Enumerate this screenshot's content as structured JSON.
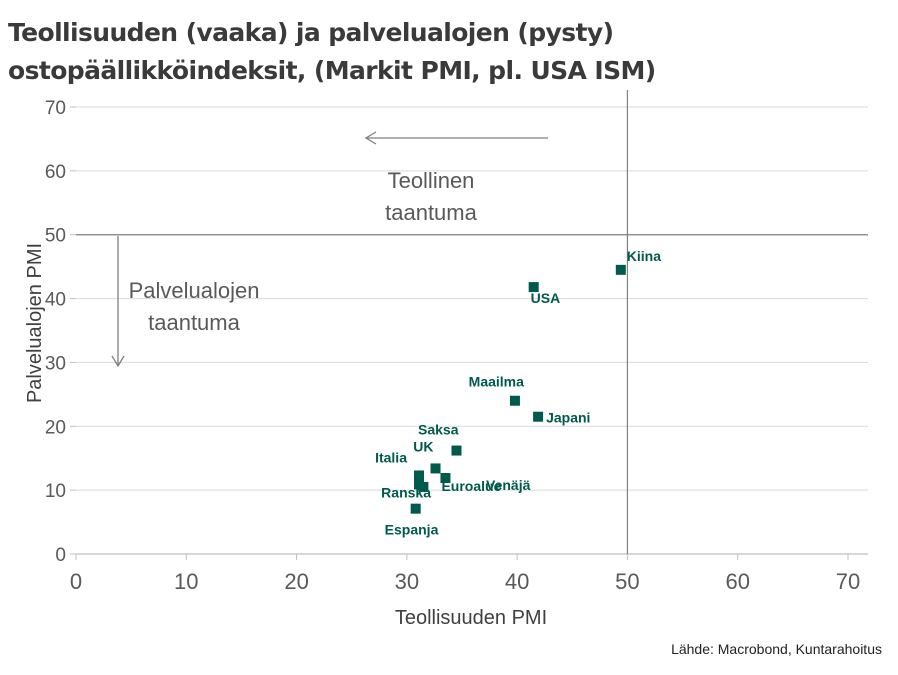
{
  "title_line1": "Teollisuuden (vaaka) ja palvelualojen (pysty)",
  "title_line2": "ostopäällikköindeksit, (Markit PMI, pl. USA ISM)",
  "source": "Lähde: Macrobond, Kuntarahoitus",
  "colors": {
    "marker": "#005a4c",
    "label": "#005a4c",
    "grid": "#d9d9d9",
    "refline": "#808080"
  },
  "annotations": {
    "industrial_recession": [
      "Teollinen",
      "taantuma"
    ],
    "services_recession": [
      "Palvelualojen",
      "taantuma"
    ]
  },
  "chart_data": {
    "type": "scatter",
    "xlabel": "Teollisuuden PMI",
    "ylabel": "Palvelualojen PMI",
    "xlim": [
      0,
      70
    ],
    "ylim": [
      0,
      70
    ],
    "xticks": [
      0,
      10,
      20,
      30,
      40,
      50,
      60,
      70
    ],
    "yticks": [
      0,
      10,
      20,
      30,
      40,
      50,
      60,
      70
    ],
    "reference_lines": {
      "x": 50,
      "y": 50
    },
    "grid": "horizontal",
    "points": [
      {
        "label": "Kiina",
        "x": 49.4,
        "y": 44.5
      },
      {
        "label": "USA",
        "x": 41.5,
        "y": 41.8
      },
      {
        "label": "Maailma",
        "x": 39.8,
        "y": 24.0
      },
      {
        "label": "Japani",
        "x": 41.9,
        "y": 21.5
      },
      {
        "label": "Saksa",
        "x": 34.5,
        "y": 16.2
      },
      {
        "label": "Venäjä",
        "x": 31.5,
        "y": 10.5
      },
      {
        "label": "UK",
        "x": 32.6,
        "y": 13.4
      },
      {
        "label": "Italia",
        "x": 31.1,
        "y": 12.3
      },
      {
        "label": "Euroalue",
        "x": 33.5,
        "y": 11.9
      },
      {
        "label": "Ranska",
        "x": 31.1,
        "y": 10.9
      },
      {
        "label": "Espanja",
        "x": 30.8,
        "y": 7.1
      }
    ]
  }
}
